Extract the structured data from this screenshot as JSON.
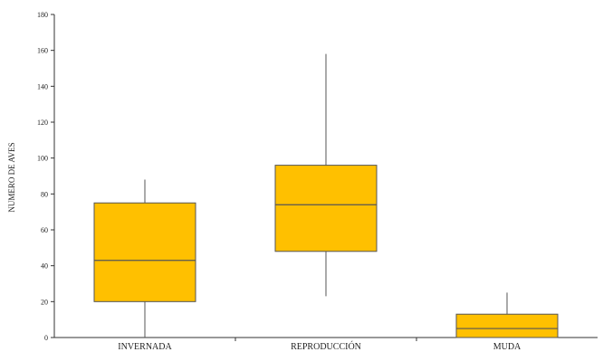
{
  "chart_data": {
    "type": "boxplot",
    "title": "",
    "xlabel": "",
    "ylabel": "NUMERO DE AVES",
    "ylim": [
      0,
      180
    ],
    "yticks": [
      0,
      20,
      40,
      60,
      80,
      100,
      120,
      140,
      160,
      180
    ],
    "categories": [
      "INVERNADA",
      "REPRODUCCIÓN",
      "MUDA"
    ],
    "series": [
      {
        "color": "#FFC000",
        "boxes": [
          {
            "min": 0,
            "q1": 20,
            "median": 43,
            "q3": 75,
            "max": 88
          },
          {
            "min": 23,
            "q1": 48,
            "median": 74,
            "q3": 96,
            "max": 158
          },
          {
            "min": 0,
            "q1": 0,
            "median": 5,
            "q3": 13,
            "max": 25
          }
        ]
      }
    ],
    "grid": false,
    "legend": "none"
  }
}
